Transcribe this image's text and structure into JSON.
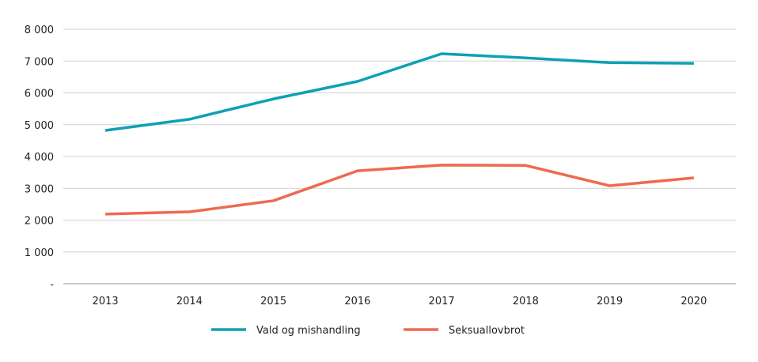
{
  "chart_data": {
    "type": "line",
    "categories": [
      "2013",
      "2014",
      "2015",
      "2016",
      "2017",
      "2018",
      "2019",
      "2020"
    ],
    "series": [
      {
        "name": "Vald og mishandling",
        "color": "#0fa0b4",
        "values": [
          4820,
          5170,
          5810,
          6360,
          7230,
          7100,
          6950,
          6930
        ]
      },
      {
        "name": "Seksuallovbrot",
        "color": "#ee6a50",
        "values": [
          2190,
          2260,
          2610,
          3550,
          3730,
          3720,
          3080,
          3330
        ]
      }
    ],
    "ylim": [
      0,
      8000
    ],
    "yticks": [
      0,
      1000,
      2000,
      3000,
      4000,
      5000,
      6000,
      7000,
      8000
    ],
    "ytick_labels": [
      "-",
      "1 000",
      "2 000",
      "3 000",
      "4 000",
      "5 000",
      "6 000",
      "7 000",
      "8 000"
    ],
    "grid": true,
    "legend": "bottom"
  }
}
